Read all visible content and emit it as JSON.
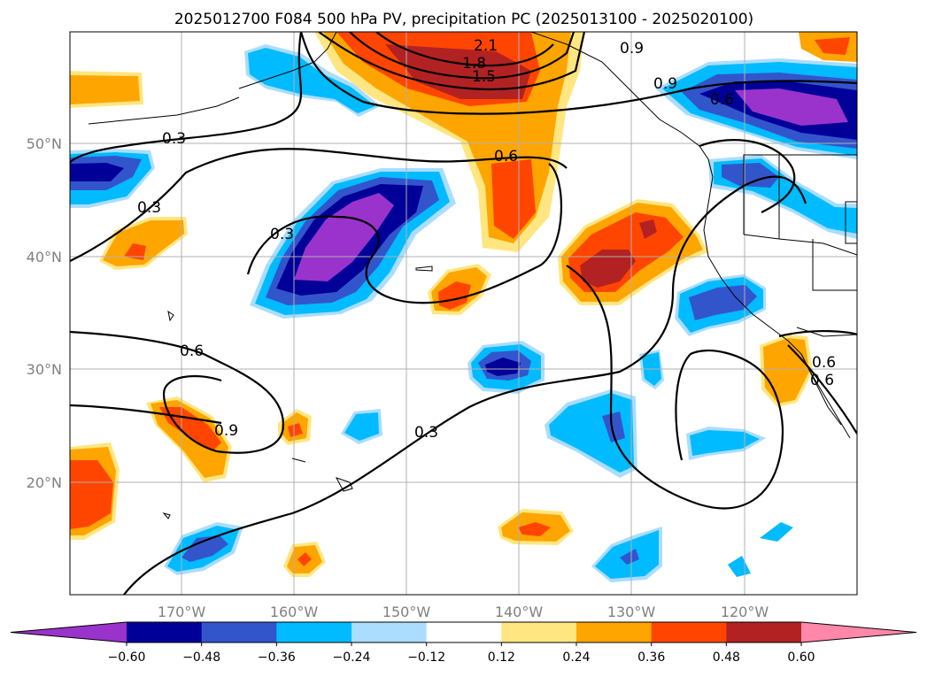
{
  "title": "2025012700 F084 500 hPa PV, precipitation PC (2025013100 - 2025020100)",
  "map": {
    "lon_labels": [
      "170°W",
      "160°W",
      "150°W",
      "140°W",
      "130°W",
      "120°W"
    ],
    "lat_labels": [
      "50°N",
      "40°N",
      "30°N",
      "20°N"
    ],
    "contour_labels": [
      "2.1",
      "1.8",
      "1.5",
      "0.9",
      "0.9",
      "0.6",
      "0.6",
      "0.3",
      "0.3",
      "0.3",
      "0.6",
      "0.9",
      "0.3",
      "0.6",
      "0.6"
    ]
  },
  "colorbar": {
    "ticks": [
      "−0.60",
      "−0.48",
      "−0.36",
      "−0.24",
      "−0.12",
      "0.12",
      "0.24",
      "0.36",
      "0.48",
      "0.60"
    ],
    "colors": [
      "#9933cc",
      "#000099",
      "#3355cc",
      "#00bbff",
      "#aaddff",
      "#ffffff",
      "#ffe680",
      "#ffa500",
      "#ff4500",
      "#b22222",
      "#ff88aa"
    ]
  }
}
